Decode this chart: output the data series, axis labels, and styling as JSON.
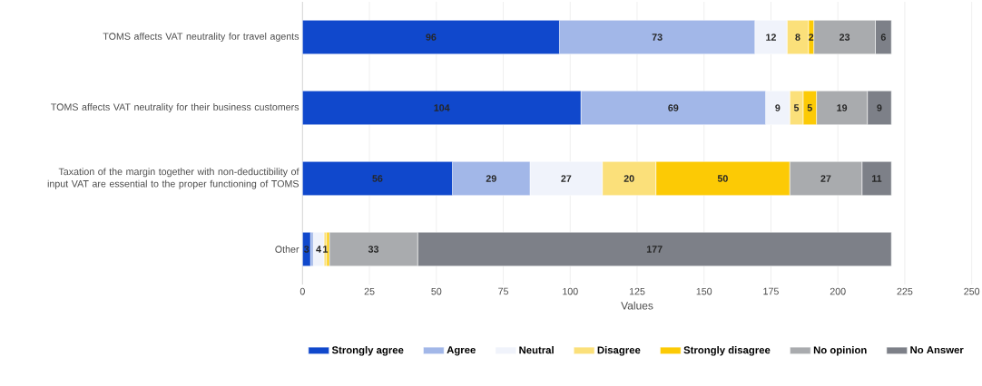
{
  "chart_data": {
    "type": "bar",
    "orientation": "horizontal",
    "stacked": true,
    "xlabel": "Values",
    "categories": [
      "TOMS affects VAT neutrality for travel agents",
      "TOMS affects VAT neutrality for their business customers",
      "Taxation of the margin together with non-deductibility of input VAT are essential to the proper functioning of TOMS",
      "Other"
    ],
    "series": [
      {
        "name": "Strongly agree",
        "color": "#1048cc",
        "values": [
          96,
          104,
          56,
          3
        ],
        "value_labels": [
          "96",
          "104",
          "56",
          "3"
        ]
      },
      {
        "name": "Agree",
        "color": "#a2b7e8",
        "values": [
          73,
          69,
          29,
          1
        ],
        "value_labels": [
          "73",
          "69",
          "29",
          null
        ]
      },
      {
        "name": "Neutral",
        "color": "#f0f3fb",
        "values": [
          12,
          9,
          27,
          4
        ],
        "value_labels": [
          "12",
          "9",
          "27",
          "4"
        ]
      },
      {
        "name": "Disagree",
        "color": "#fbe07a",
        "values": [
          8,
          5,
          20,
          1
        ],
        "value_labels": [
          "8",
          "5",
          "20",
          "1"
        ]
      },
      {
        "name": "Strongly disagree",
        "color": "#fcca05",
        "values": [
          2,
          5,
          50,
          1
        ],
        "value_labels": [
          "2",
          "5",
          "50",
          null
        ]
      },
      {
        "name": "No opinion",
        "color": "#a9abae",
        "values": [
          23,
          19,
          27,
          33
        ],
        "value_labels": [
          "23",
          "19",
          "27",
          "33"
        ]
      },
      {
        "name": "No Answer",
        "color": "#7d8088",
        "values": [
          6,
          9,
          11,
          177
        ],
        "value_labels": [
          "6",
          "9",
          "11",
          "177"
        ]
      }
    ],
    "xlim": [
      0,
      250
    ],
    "xticks": [
      0,
      25,
      50,
      75,
      100,
      125,
      150,
      175,
      200,
      225,
      250
    ],
    "grid": "x",
    "legend": "bottom"
  }
}
